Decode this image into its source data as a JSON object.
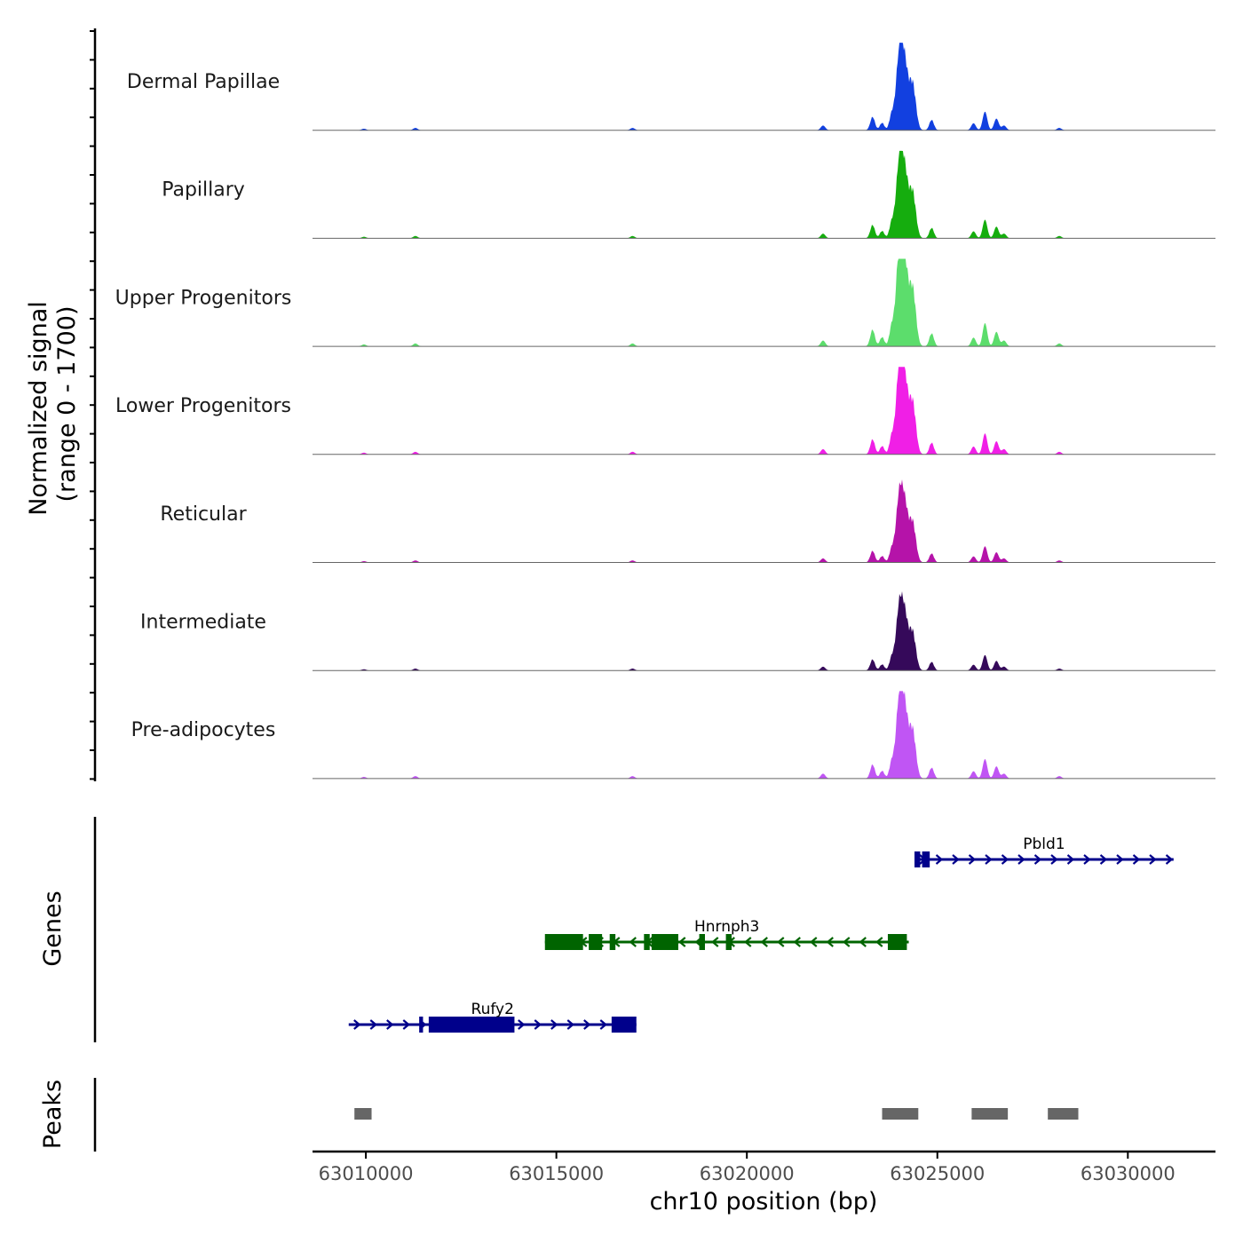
{
  "chart_data": {
    "type": "area",
    "title": "",
    "chromosome": "chr10",
    "xlabel": "chr10 position (bp)",
    "ylabel_line1": "Normalized signal",
    "ylabel_line2": "(range 0 - 1700)",
    "xlim": [
      63008600,
      63032300
    ],
    "ylim": [
      0,
      1700
    ],
    "x_ticks": [
      63010000,
      63015000,
      63020000,
      63025000,
      63030000
    ],
    "x_tick_labels": [
      "63010000",
      "63015000",
      "63020000",
      "63025000",
      "63030000"
    ],
    "coverage_peaks_shared": [
      {
        "pos": 62999400,
        "height": 0.0
      },
      {
        "pos": 63009950,
        "height": 0.02
      },
      {
        "pos": 63011300,
        "height": 0.03
      },
      {
        "pos": 63017000,
        "height": 0.03
      },
      {
        "pos": 63022000,
        "height": 0.06
      },
      {
        "pos": 63023300,
        "height": 0.18
      },
      {
        "pos": 63023550,
        "height": 0.1
      },
      {
        "pos": 63023800,
        "height": 0.2
      },
      {
        "pos": 63024000,
        "height": 1.0
      },
      {
        "pos": 63024150,
        "height": 0.8
      },
      {
        "pos": 63024350,
        "height": 0.62
      },
      {
        "pos": 63024850,
        "height": 0.14
      },
      {
        "pos": 63025950,
        "height": 0.09
      },
      {
        "pos": 63026250,
        "height": 0.24
      },
      {
        "pos": 63026550,
        "height": 0.15
      },
      {
        "pos": 63026750,
        "height": 0.06
      },
      {
        "pos": 63028200,
        "height": 0.03
      }
    ],
    "series": [
      {
        "name": "Dermal Papillae",
        "color": "#1240e0",
        "max_signal": 1700,
        "scale": 1.0
      },
      {
        "name": "Papillary",
        "color": "#15ad0e",
        "max_signal": 1700,
        "scale": 1.0
      },
      {
        "name": "Upper Progenitors",
        "color": "#5cdd6c",
        "max_signal": 1700,
        "scale": 1.25
      },
      {
        "name": "Lower Progenitors",
        "color": "#f01fe6",
        "max_signal": 1700,
        "scale": 1.13
      },
      {
        "name": "Reticular",
        "color": "#b513a9",
        "max_signal": 1700,
        "scale": 0.87
      },
      {
        "name": "Intermediate",
        "color": "#35095a",
        "max_signal": 1700,
        "scale": 0.83
      },
      {
        "name": "Pre-adipocytes",
        "color": "#c055f4",
        "max_signal": 1700,
        "scale": 1.05
      }
    ],
    "genes_track_label": "Genes",
    "genes": [
      {
        "name": "Pbld1",
        "strand": "+",
        "color": "#00008b",
        "start": 63024400,
        "end": 63031200,
        "exons": [
          [
            63024400,
            63024550
          ],
          [
            63024600,
            63024800
          ]
        ],
        "row": 0
      },
      {
        "name": "Hnrnph3",
        "strand": "-",
        "color": "#006400",
        "start": 63014700,
        "end": 63024250,
        "exons": [
          [
            63014700,
            63015700
          ],
          [
            63015850,
            63016200
          ],
          [
            63016400,
            63016550
          ],
          [
            63017300,
            63017450
          ],
          [
            63017500,
            63018200
          ],
          [
            63018750,
            63018900
          ],
          [
            63019450,
            63019600
          ],
          [
            63023700,
            63024200
          ]
        ],
        "row": 1
      },
      {
        "name": "Rufy2",
        "strand": "+",
        "color": "#00008b",
        "start": 63009550,
        "end": 63017100,
        "exons": [
          [
            63011400,
            63011500
          ],
          [
            63011650,
            63013900
          ],
          [
            63016450,
            63017100
          ]
        ],
        "row": 2
      }
    ],
    "peaks_track_label": "Peaks",
    "peaks_color": "#666666",
    "peaks": [
      [
        63009700,
        63010150
      ],
      [
        63023550,
        63024500
      ],
      [
        63025900,
        63026850
      ],
      [
        63027900,
        63028700
      ]
    ]
  }
}
